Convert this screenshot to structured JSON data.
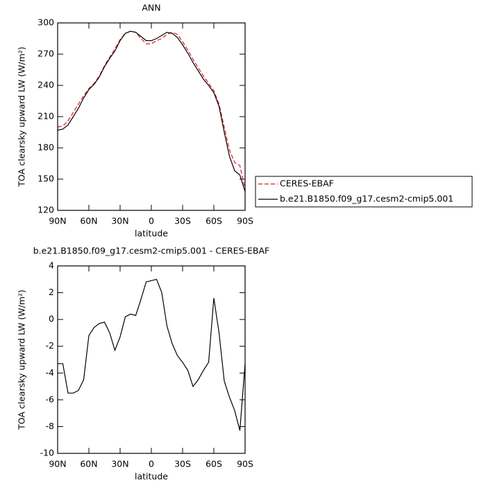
{
  "chart_data": [
    {
      "type": "line",
      "title": "ANN",
      "xlabel": "latitude",
      "ylabel": "TOA clearsky upward LW (W/m²)",
      "legend": "right",
      "x": [
        90,
        85,
        80,
        75,
        70,
        65,
        60,
        55,
        50,
        45,
        40,
        35,
        30,
        25,
        20,
        15,
        10,
        5,
        0,
        -5,
        -10,
        -15,
        -20,
        -25,
        -30,
        -35,
        -40,
        -45,
        -50,
        -55,
        -60,
        -65,
        -70,
        -75,
        -80,
        -85,
        -90
      ],
      "xlim": [
        90,
        -90
      ],
      "xticks": [
        {
          "value": 90,
          "label": "90N"
        },
        {
          "value": 60,
          "label": "60N"
        },
        {
          "value": 30,
          "label": "30N"
        },
        0,
        {
          "value": -30,
          "label": "30S"
        },
        {
          "value": -60,
          "label": "60S"
        },
        {
          "value": -90,
          "label": "90S"
        }
      ],
      "ylim": [
        120,
        300
      ],
      "yticks": [
        120,
        150,
        180,
        210,
        240,
        270,
        300
      ],
      "series": [
        {
          "name": "CERES-EBAF",
          "color": "#e8141e",
          "style": "dashed",
          "values": [
            200,
            201,
            206,
            214,
            222,
            230,
            237,
            242,
            249,
            259,
            267,
            275,
            284,
            290,
            292,
            291,
            285,
            280,
            280,
            283,
            285,
            289,
            291,
            289,
            282,
            274,
            265,
            257,
            249,
            242,
            235,
            222,
            200,
            178,
            166,
            163,
            140
          ]
        },
        {
          "name": "b.e21.B1850.f09_g17.cesm2-cmip5.001",
          "color": "#000000",
          "style": "solid",
          "values": [
            197,
            198,
            202,
            210,
            218,
            228,
            236,
            241,
            248,
            258,
            266,
            273,
            283,
            290,
            292,
            291,
            287,
            283,
            283,
            285,
            288,
            291,
            290,
            286,
            279,
            271,
            262,
            254,
            246,
            240,
            233,
            220,
            195,
            172,
            158,
            154,
            138
          ]
        }
      ]
    },
    {
      "type": "line",
      "title": "b.e21.B1850.f09_g17.cesm2-cmip5.001 - CERES-EBAF",
      "xlabel": "latitude",
      "ylabel": "TOA clearsky upward LW (W/m²)",
      "x": [
        90,
        85,
        80,
        75,
        70,
        65,
        60,
        55,
        50,
        45,
        40,
        35,
        30,
        25,
        20,
        15,
        10,
        5,
        0,
        -5,
        -10,
        -15,
        -20,
        -25,
        -30,
        -35,
        -40,
        -45,
        -50,
        -55,
        -60,
        -65,
        -70,
        -75,
        -80,
        -85,
        -90
      ],
      "xlim": [
        90,
        -90
      ],
      "xticks": [
        {
          "value": 90,
          "label": "90N"
        },
        {
          "value": 60,
          "label": "60N"
        },
        {
          "value": 30,
          "label": "30N"
        },
        0,
        {
          "value": -30,
          "label": "30S"
        },
        {
          "value": -60,
          "label": "60S"
        },
        {
          "value": -90,
          "label": "90S"
        }
      ],
      "ylim": [
        -10,
        4
      ],
      "yticks": [
        -10,
        -8,
        -6,
        -4,
        -2,
        0,
        2,
        4
      ],
      "series": [
        {
          "color": "#000000",
          "style": "solid",
          "values": [
            -3.3,
            -3.3,
            -5.5,
            -5.5,
            -5.3,
            -4.5,
            -1.2,
            -0.6,
            -0.3,
            -0.2,
            -1.0,
            -2.3,
            -1.3,
            0.2,
            0.4,
            0.3,
            1.5,
            2.8,
            2.9,
            3.0,
            2.0,
            -0.5,
            -1.8,
            -2.7,
            -3.2,
            -3.8,
            -5.0,
            -4.5,
            -3.8,
            -3.2,
            1.6,
            -1.0,
            -4.6,
            -5.8,
            -6.8,
            -8.3,
            -3.3
          ]
        }
      ]
    }
  ]
}
